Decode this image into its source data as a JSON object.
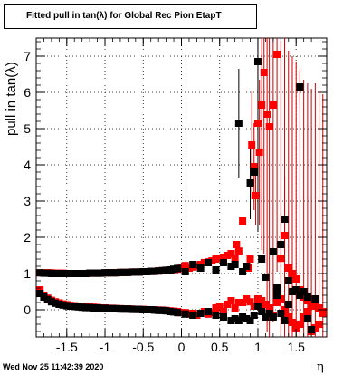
{
  "chart_data": {
    "type": "scatter",
    "title": "Fitted pull in tan(λ) for Global Rec Pion EtapT",
    "xlabel": "η",
    "ylabel": "pull in tan(λ)",
    "xlim": [
      -1.9,
      1.9
    ],
    "ylim": [
      -0.75,
      7.5
    ],
    "xticks": [
      "-1.5",
      "-1",
      "-0.5",
      "0",
      "0.5",
      "1",
      "1.5"
    ],
    "yticks": [
      "0",
      "1",
      "2",
      "3",
      "4",
      "5",
      "6",
      "7"
    ],
    "grid": true,
    "series": [
      {
        "color": "#ff0000",
        "points": [
          [
            -1.85,
            1.02
          ],
          [
            -1.8,
            1.02
          ],
          [
            -1.75,
            1.02
          ],
          [
            -1.7,
            1.02
          ],
          [
            -1.65,
            1.01
          ],
          [
            -1.6,
            1.01
          ],
          [
            -1.55,
            1.01
          ],
          [
            -1.5,
            1.0
          ],
          [
            -1.45,
            1.0
          ],
          [
            -1.4,
            1.0
          ],
          [
            -1.35,
            1.0
          ],
          [
            -1.3,
            1.0
          ],
          [
            -1.25,
            1.0
          ],
          [
            -1.2,
            1.01
          ],
          [
            -1.15,
            1.01
          ],
          [
            -1.1,
            1.01
          ],
          [
            -1.05,
            1.01
          ],
          [
            -1.0,
            1.02
          ],
          [
            -0.95,
            1.02
          ],
          [
            -0.9,
            1.02
          ],
          [
            -0.85,
            1.02
          ],
          [
            -0.8,
            1.03
          ],
          [
            -0.75,
            1.03
          ],
          [
            -0.7,
            1.03
          ],
          [
            -0.65,
            1.04
          ],
          [
            -0.6,
            1.04
          ],
          [
            -0.55,
            1.04
          ],
          [
            -0.5,
            1.05
          ],
          [
            -0.45,
            1.05
          ],
          [
            -0.4,
            1.06
          ],
          [
            -0.35,
            1.06
          ],
          [
            -0.3,
            1.07
          ],
          [
            -0.25,
            1.08
          ],
          [
            -0.2,
            1.09
          ],
          [
            -0.15,
            1.1
          ],
          [
            -0.1,
            1.11
          ],
          [
            -0.05,
            1.12
          ],
          [
            0.0,
            1.15
          ],
          [
            0.05,
            1.22
          ],
          [
            0.1,
            1.15
          ],
          [
            0.15,
            1.18
          ],
          [
            0.2,
            1.22
          ],
          [
            0.25,
            1.25
          ],
          [
            0.3,
            1.3
          ],
          [
            0.35,
            1.32
          ],
          [
            0.4,
            1.35
          ],
          [
            0.45,
            1.4
          ],
          [
            0.5,
            1.42
          ],
          [
            0.55,
            1.45
          ],
          [
            0.6,
            1.5
          ],
          [
            0.65,
            1.55
          ],
          [
            0.7,
            1.4
          ],
          [
            0.72,
            1.8
          ],
          [
            0.75,
            1.62
          ],
          [
            0.8,
            2.45
          ],
          [
            0.85,
            1.2
          ],
          [
            0.88,
            1.15
          ],
          [
            0.9,
            1.4
          ],
          [
            0.92,
            4.55
          ],
          [
            0.95,
            3.95
          ],
          [
            0.97,
            3.15
          ],
          [
            1.0,
            5.15
          ],
          [
            1.02,
            4.35
          ],
          [
            1.05,
            5.65
          ],
          [
            1.08,
            6.55
          ],
          [
            1.12,
            5.4
          ],
          [
            1.15,
            5.05
          ],
          [
            1.2,
            5.65
          ],
          [
            1.25,
            7.05
          ],
          [
            1.3,
            1.42
          ],
          [
            1.35,
            2.05
          ],
          [
            1.4,
            1.15
          ],
          [
            1.45,
            1.0
          ],
          [
            1.5,
            0.85
          ],
          [
            1.55,
            0.55
          ],
          [
            1.6,
            0.35
          ],
          [
            1.65,
            0.25
          ],
          [
            1.7,
            0.1
          ],
          [
            1.75,
            0.25
          ],
          [
            1.8,
            0.05
          ],
          [
            1.85,
            -0.05
          ],
          [
            -1.85,
            0.55
          ],
          [
            -1.8,
            0.4
          ],
          [
            -1.75,
            0.32
          ],
          [
            -1.7,
            0.26
          ],
          [
            -1.65,
            0.22
          ],
          [
            -1.6,
            0.19
          ],
          [
            -1.55,
            0.16
          ],
          [
            -1.5,
            0.14
          ],
          [
            -1.45,
            0.12
          ],
          [
            -1.4,
            0.11
          ],
          [
            -1.35,
            0.1
          ],
          [
            -1.3,
            0.09
          ],
          [
            -1.25,
            0.08
          ],
          [
            -1.2,
            0.07
          ],
          [
            -1.15,
            0.07
          ],
          [
            -1.1,
            0.06
          ],
          [
            -1.05,
            0.05
          ],
          [
            -1.0,
            0.05
          ],
          [
            -0.95,
            0.04
          ],
          [
            -0.9,
            0.04
          ],
          [
            -0.85,
            0.03
          ],
          [
            -0.8,
            0.03
          ],
          [
            -0.75,
            0.02
          ],
          [
            -0.7,
            0.02
          ],
          [
            -0.65,
            0.02
          ],
          [
            -0.6,
            0.01
          ],
          [
            -0.55,
            0.01
          ],
          [
            -0.5,
            0.01
          ],
          [
            -0.45,
            0.0
          ],
          [
            -0.4,
            0.0
          ],
          [
            -0.35,
            0.0
          ],
          [
            -0.3,
            -0.01
          ],
          [
            -0.25,
            -0.01
          ],
          [
            -0.2,
            -0.02
          ],
          [
            -0.15,
            -0.03
          ],
          [
            -0.1,
            -0.04
          ],
          [
            -0.05,
            -0.05
          ],
          [
            0.0,
            -0.08
          ],
          [
            0.05,
            -0.08
          ],
          [
            0.1,
            -0.12
          ],
          [
            0.15,
            -0.1
          ],
          [
            0.2,
            -0.15
          ],
          [
            0.25,
            -0.1
          ],
          [
            0.3,
            -0.05
          ],
          [
            0.35,
            -0.12
          ],
          [
            0.4,
            -0.08
          ],
          [
            0.45,
            0.05
          ],
          [
            0.5,
            0.1
          ],
          [
            0.55,
            -0.05
          ],
          [
            0.6,
            0.15
          ],
          [
            0.65,
            0.25
          ],
          [
            0.7,
            0.05
          ],
          [
            0.75,
            0.2
          ],
          [
            0.8,
            0.2
          ],
          [
            0.85,
            0.3
          ],
          [
            0.9,
            0.22
          ],
          [
            0.95,
            0.1
          ],
          [
            1.0,
            0.3
          ],
          [
            1.05,
            0.25
          ],
          [
            1.1,
            0.15
          ],
          [
            1.15,
            0.05
          ],
          [
            1.2,
            -0.15
          ],
          [
            1.25,
            0.2
          ],
          [
            1.3,
            0.3
          ],
          [
            1.35,
            0.0
          ],
          [
            1.4,
            -0.2
          ],
          [
            1.45,
            -0.35
          ],
          [
            1.5,
            -0.5
          ],
          [
            1.55,
            -0.4
          ],
          [
            1.6,
            -0.2
          ],
          [
            1.65,
            -0.05
          ],
          [
            1.7,
            -0.6
          ],
          [
            1.75,
            -0.5
          ],
          [
            1.8,
            -0.4
          ],
          [
            1.85,
            -0.1
          ]
        ]
      },
      {
        "color": "#000000",
        "points": [
          [
            -1.85,
            1.02
          ],
          [
            -1.8,
            1.01
          ],
          [
            -1.75,
            1.01
          ],
          [
            -1.7,
            1.0
          ],
          [
            -1.65,
            1.0
          ],
          [
            -1.6,
            1.0
          ],
          [
            -1.55,
            1.0
          ],
          [
            -1.5,
            1.0
          ],
          [
            -1.45,
            1.0
          ],
          [
            -1.4,
            1.0
          ],
          [
            -1.35,
            1.0
          ],
          [
            -1.3,
            1.0
          ],
          [
            -1.25,
            1.0
          ],
          [
            -1.2,
            1.01
          ],
          [
            -1.15,
            1.01
          ],
          [
            -1.1,
            1.01
          ],
          [
            -1.05,
            1.01
          ],
          [
            -1.0,
            1.02
          ],
          [
            -0.95,
            1.02
          ],
          [
            -0.9,
            1.02
          ],
          [
            -0.85,
            1.02
          ],
          [
            -0.8,
            1.03
          ],
          [
            -0.75,
            1.03
          ],
          [
            -0.7,
            1.03
          ],
          [
            -0.65,
            1.04
          ],
          [
            -0.6,
            1.04
          ],
          [
            -0.55,
            1.04
          ],
          [
            -0.5,
            1.05
          ],
          [
            -0.45,
            1.05
          ],
          [
            -0.4,
            1.06
          ],
          [
            -0.35,
            1.06
          ],
          [
            -0.3,
            1.07
          ],
          [
            -0.25,
            1.08
          ],
          [
            -0.2,
            1.09
          ],
          [
            -0.15,
            1.1
          ],
          [
            -0.1,
            1.12
          ],
          [
            -0.05,
            1.14
          ],
          [
            0.05,
            1.05
          ],
          [
            0.15,
            1.25
          ],
          [
            0.25,
            1.15
          ],
          [
            0.35,
            1.3
          ],
          [
            0.45,
            1.1
          ],
          [
            0.55,
            1.3
          ],
          [
            0.65,
            1.2
          ],
          [
            0.7,
            1.25
          ],
          [
            0.75,
            5.15
          ],
          [
            0.8,
            1.05
          ],
          [
            0.85,
            1.2
          ],
          [
            0.9,
            3.5
          ],
          [
            0.95,
            3.8
          ],
          [
            1.0,
            6.85
          ],
          [
            1.05,
            1.4
          ],
          [
            1.1,
            0.9
          ],
          [
            1.2,
            1.6
          ],
          [
            1.25,
            0.6
          ],
          [
            1.3,
            1.8
          ],
          [
            1.35,
            2.5
          ],
          [
            1.4,
            0.8
          ],
          [
            1.45,
            0.5
          ],
          [
            1.55,
            6.15
          ],
          [
            1.6,
            0.5
          ],
          [
            1.65,
            0.35
          ],
          [
            1.75,
            0.3
          ],
          [
            -1.85,
            0.45
          ],
          [
            -1.8,
            0.35
          ],
          [
            -1.75,
            0.28
          ],
          [
            -1.7,
            0.22
          ],
          [
            -1.65,
            0.18
          ],
          [
            -1.6,
            0.15
          ],
          [
            -1.55,
            0.13
          ],
          [
            -1.5,
            0.11
          ],
          [
            -1.45,
            0.1
          ],
          [
            -1.4,
            0.09
          ],
          [
            -1.35,
            0.08
          ],
          [
            -1.3,
            0.07
          ],
          [
            -1.25,
            0.06
          ],
          [
            -1.2,
            0.06
          ],
          [
            -1.15,
            0.05
          ],
          [
            -1.1,
            0.05
          ],
          [
            -1.05,
            0.04
          ],
          [
            -1.0,
            0.04
          ],
          [
            -0.95,
            0.03
          ],
          [
            -0.9,
            0.03
          ],
          [
            -0.85,
            0.03
          ],
          [
            -0.8,
            0.02
          ],
          [
            -0.75,
            0.02
          ],
          [
            -0.7,
            0.02
          ],
          [
            -0.65,
            0.01
          ],
          [
            -0.6,
            0.01
          ],
          [
            -0.55,
            0.01
          ],
          [
            -0.5,
            0.0
          ],
          [
            -0.45,
            0.0
          ],
          [
            -0.4,
            0.0
          ],
          [
            -0.35,
            -0.01
          ],
          [
            -0.3,
            -0.02
          ],
          [
            -0.25,
            -0.02
          ],
          [
            -0.2,
            -0.03
          ],
          [
            -0.15,
            -0.05
          ],
          [
            -0.1,
            -0.06
          ],
          [
            -0.05,
            -0.08
          ],
          [
            0.05,
            -0.12
          ],
          [
            0.15,
            -0.15
          ],
          [
            0.25,
            -0.1
          ],
          [
            0.35,
            -0.05
          ],
          [
            0.45,
            -0.15
          ],
          [
            0.55,
            -0.2
          ],
          [
            0.65,
            -0.3
          ],
          [
            0.7,
            -0.25
          ],
          [
            0.75,
            -0.3
          ],
          [
            0.8,
            -0.2
          ],
          [
            0.85,
            -0.25
          ],
          [
            0.9,
            -0.3
          ],
          [
            0.95,
            -0.15
          ],
          [
            1.0,
            0.1
          ],
          [
            1.05,
            -0.05
          ],
          [
            1.1,
            -0.2
          ],
          [
            1.15,
            -0.1
          ],
          [
            1.2,
            -0.2
          ],
          [
            1.25,
            0.4
          ],
          [
            1.3,
            -0.1
          ],
          [
            1.35,
            -0.3
          ],
          [
            1.4,
            0.15
          ],
          [
            1.5,
            0.55
          ],
          [
            1.55,
            0.4
          ],
          [
            1.65,
            -0.25
          ],
          [
            1.7,
            -0.55
          ]
        ]
      }
    ],
    "error_bars": [
      [
        0.92,
        4.55,
        1.5
      ],
      [
        0.95,
        3.95,
        1.2
      ],
      [
        0.97,
        3.15,
        0.8
      ],
      [
        1.0,
        5.15,
        3.0
      ],
      [
        1.02,
        4.35,
        2.0
      ],
      [
        1.05,
        5.65,
        4.0
      ],
      [
        1.08,
        6.55,
        5.0
      ],
      [
        1.12,
        5.4,
        6.0
      ],
      [
        1.15,
        5.05,
        6.0
      ],
      [
        1.2,
        5.65,
        6.0
      ],
      [
        1.25,
        7.05,
        6.0
      ],
      [
        1.3,
        1.42,
        6.0
      ],
      [
        1.35,
        2.05,
        6.0
      ],
      [
        1.4,
        1.15,
        6.0
      ],
      [
        1.45,
        1.0,
        6.0
      ],
      [
        1.5,
        0.85,
        6.0
      ],
      [
        1.55,
        0.55,
        6.0
      ],
      [
        1.6,
        0.35,
        6.0
      ],
      [
        1.65,
        0.25,
        6.0
      ],
      [
        1.7,
        0.1,
        6.0
      ],
      [
        1.75,
        0.25,
        6.0
      ],
      [
        1.8,
        0.05,
        6.0
      ],
      [
        1.85,
        -0.05,
        6.0
      ],
      [
        0.75,
        5.15,
        1.5
      ],
      [
        0.9,
        3.5,
        1.0
      ],
      [
        1.0,
        6.85,
        0.9
      ],
      [
        1.35,
        2.5,
        1.2
      ],
      [
        1.55,
        6.15,
        0.5
      ]
    ]
  },
  "footer": {
    "timestamp": "Wed Nov 25 11:42:39 2020"
  }
}
